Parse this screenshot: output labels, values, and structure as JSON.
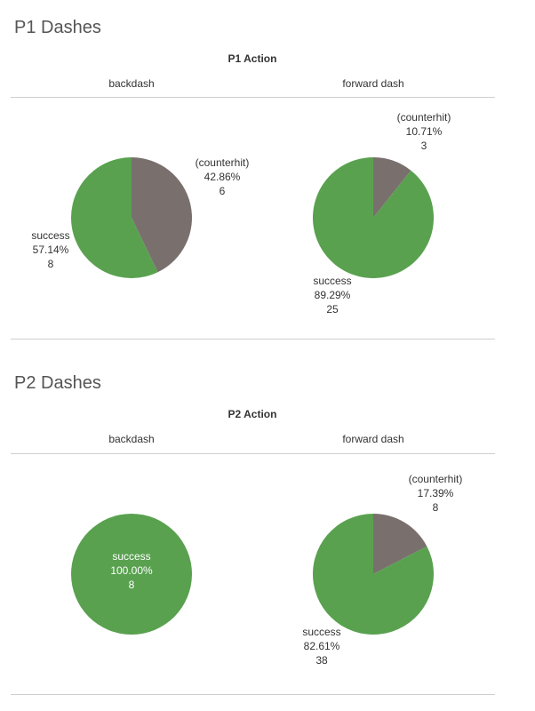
{
  "colors": {
    "success": "#59a14f",
    "counterhit": "#79706e",
    "label_dark": "#333333",
    "label_light": "#ffffff"
  },
  "chart_data": [
    {
      "type": "pie",
      "title": "P1 Dashes",
      "action_header": "P1 Action",
      "columns": [
        "backdash",
        "forward dash"
      ],
      "pies": [
        {
          "column": "backdash",
          "slices": [
            {
              "name": "(counterhit)",
              "percent": "42.86%",
              "count": 6
            },
            {
              "name": "success",
              "percent": "57.14%",
              "count": 8
            }
          ]
        },
        {
          "column": "forward dash",
          "slices": [
            {
              "name": "(counterhit)",
              "percent": "10.71%",
              "count": 3
            },
            {
              "name": "success",
              "percent": "89.29%",
              "count": 25
            }
          ]
        }
      ]
    },
    {
      "type": "pie",
      "title": "P2 Dashes",
      "action_header": "P2 Action",
      "columns": [
        "backdash",
        "forward dash"
      ],
      "pies": [
        {
          "column": "backdash",
          "slices": [
            {
              "name": "success",
              "percent": "100.00%",
              "count": 8
            }
          ]
        },
        {
          "column": "forward dash",
          "slices": [
            {
              "name": "(counterhit)",
              "percent": "17.39%",
              "count": 8
            },
            {
              "name": "success",
              "percent": "82.61%",
              "count": 38
            }
          ]
        }
      ]
    }
  ]
}
